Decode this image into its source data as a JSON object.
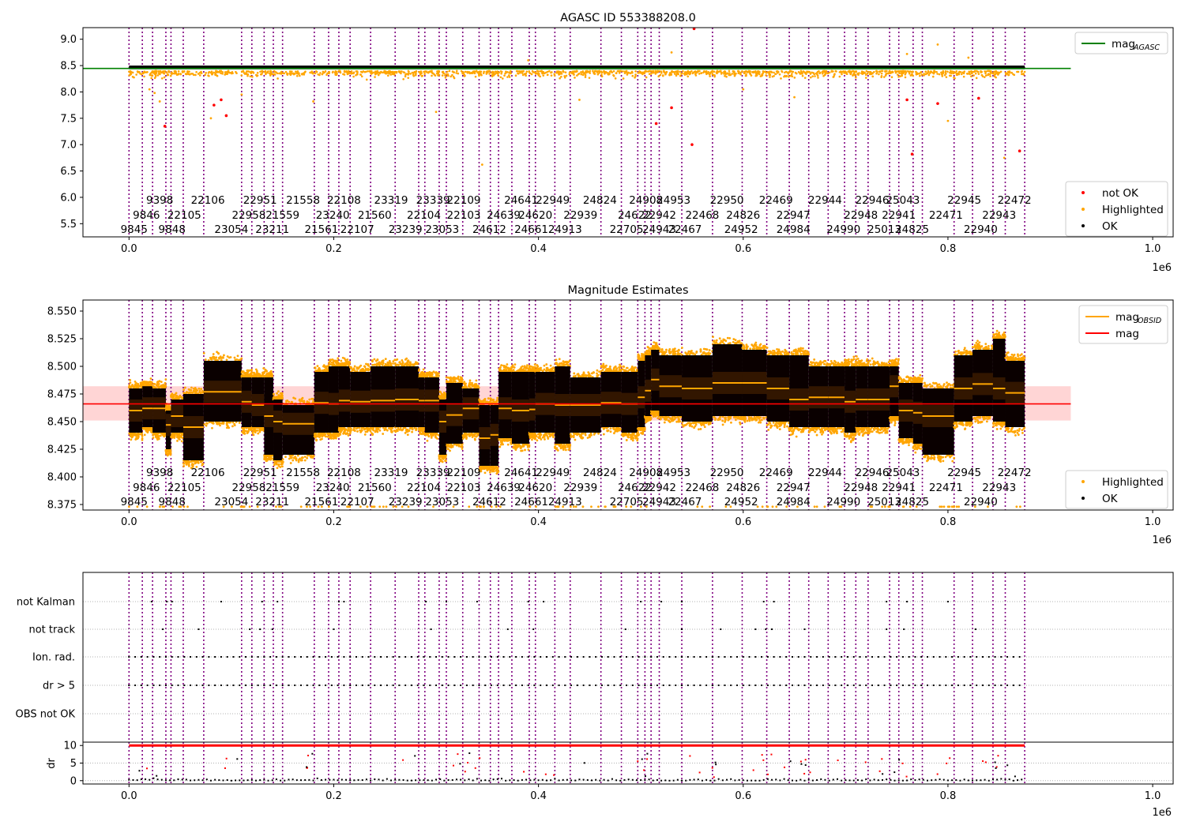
{
  "chart_data": [
    {
      "type": "scatter",
      "title": "AGASC ID 553388208.0",
      "x_multiplier": "1e6",
      "xlim": [
        -0.045,
        1.02
      ],
      "ylim": [
        5.25,
        9.22
      ],
      "xticks": [
        "0.0",
        "0.2",
        "0.4",
        "0.6",
        "0.8",
        "1.0"
      ],
      "xtick_values": [
        0.0,
        0.2,
        0.4,
        0.6,
        0.8,
        1.0
      ],
      "yticks": [
        "5.5",
        "6.0",
        "6.5",
        "7.0",
        "7.5",
        "8.0",
        "8.5",
        "9.0"
      ],
      "ytick_values": [
        5.5,
        6.0,
        6.5,
        7.0,
        7.5,
        8.0,
        8.5,
        9.0
      ],
      "legend_top": [
        {
          "label": "mag",
          "sub": "AGASC",
          "color": "#008000"
        }
      ],
      "legend_bottom": [
        {
          "label": "not OK",
          "color": "#ff0000"
        },
        {
          "label": "Highlighted",
          "color": "#ffa500"
        },
        {
          "label": "OK",
          "color": "#000000"
        }
      ],
      "mag_agasc": 8.445,
      "mag_agasc_xrange": [
        -0.045,
        0.92
      ],
      "ok_band": [
        8.43,
        8.5
      ],
      "not_ok_points": [
        [
          0.035,
          7.35
        ],
        [
          0.083,
          7.75
        ],
        [
          0.09,
          7.85
        ],
        [
          0.095,
          7.55
        ],
        [
          0.515,
          7.4
        ],
        [
          0.53,
          7.7
        ],
        [
          0.55,
          7.0
        ],
        [
          0.552,
          9.2
        ],
        [
          0.76,
          7.85
        ],
        [
          0.765,
          6.82
        ],
        [
          0.79,
          7.78
        ],
        [
          0.83,
          7.88
        ],
        [
          0.87,
          6.88
        ]
      ],
      "highlighted_outliers": [
        [
          0.02,
          8.05
        ],
        [
          0.025,
          7.98
        ],
        [
          0.03,
          7.82
        ],
        [
          0.08,
          7.5
        ],
        [
          0.11,
          7.95
        ],
        [
          0.18,
          7.82
        ],
        [
          0.3,
          7.62
        ],
        [
          0.345,
          6.62
        ],
        [
          0.39,
          8.6
        ],
        [
          0.44,
          7.85
        ],
        [
          0.53,
          8.75
        ],
        [
          0.6,
          8.05
        ],
        [
          0.65,
          7.9
        ],
        [
          0.76,
          8.72
        ],
        [
          0.8,
          7.45
        ],
        [
          0.82,
          8.65
        ],
        [
          0.855,
          6.75
        ],
        [
          0.79,
          8.9
        ]
      ]
    },
    {
      "type": "scatter",
      "title": "Magnitude Estimates",
      "x_multiplier": "1e6",
      "xlim": [
        -0.045,
        1.02
      ],
      "ylim": [
        8.37,
        8.56
      ],
      "xticks": [
        "0.0",
        "0.2",
        "0.4",
        "0.6",
        "0.8",
        "1.0"
      ],
      "xtick_values": [
        0.0,
        0.2,
        0.4,
        0.6,
        0.8,
        1.0
      ],
      "yticks": [
        "8.375",
        "8.400",
        "8.425",
        "8.450",
        "8.475",
        "8.500",
        "8.525",
        "8.550"
      ],
      "ytick_values": [
        8.375,
        8.4,
        8.425,
        8.45,
        8.475,
        8.5,
        8.525,
        8.55
      ],
      "legend_top": [
        {
          "label": "mag",
          "sub": "OBSID",
          "color": "#ffa500"
        },
        {
          "label": "mag",
          "sub": "",
          "color": "#ff0000"
        }
      ],
      "legend_bottom": [
        {
          "label": "Highlighted",
          "color": "#ffa500"
        },
        {
          "label": "OK",
          "color": "#000000"
        }
      ],
      "mag": 8.466,
      "mag_band": [
        8.451,
        8.482
      ],
      "mag_xrange": [
        -0.045,
        0.92
      ],
      "obsid_mags": [
        8.46,
        8.462,
        8.462,
        8.447,
        8.455,
        8.445,
        8.477,
        8.468,
        8.465,
        8.455,
        8.45,
        8.448,
        8.467,
        8.466,
        8.469,
        8.468,
        8.469,
        8.47,
        8.469,
        8.469,
        8.45,
        8.456,
        8.462,
        8.435,
        8.438,
        8.462,
        8.46,
        8.461,
        8.466,
        8.465,
        8.465,
        8.467,
        8.466,
        8.472,
        8.478,
        8.488,
        8.482,
        8.48,
        8.485,
        8.485,
        8.48,
        8.47,
        8.472,
        8.472,
        8.468,
        8.47,
        8.47,
        8.482,
        8.46,
        8.458,
        8.455,
        8.48,
        8.484,
        8.48,
        8.476,
        8.476,
        8.474
      ],
      "obsid_spread_hi": [
        8.48,
        8.482,
        8.48,
        8.46,
        8.47,
        8.475,
        8.505,
        8.49,
        8.49,
        8.49,
        8.47,
        8.465,
        8.495,
        8.5,
        8.5,
        8.495,
        8.5,
        8.5,
        8.49,
        8.49,
        8.47,
        8.485,
        8.48,
        8.465,
        8.465,
        8.495,
        8.495,
        8.495,
        8.495,
        8.5,
        8.49,
        8.495,
        8.495,
        8.505,
        8.51,
        8.515,
        8.51,
        8.51,
        8.52,
        8.515,
        8.51,
        8.51,
        8.5,
        8.5,
        8.5,
        8.5,
        8.5,
        8.5,
        8.485,
        8.485,
        8.48,
        8.51,
        8.515,
        8.525,
        8.505,
        8.505,
        8.5
      ],
      "obsid_spread_lo": [
        8.44,
        8.445,
        8.44,
        8.425,
        8.44,
        8.415,
        8.45,
        8.445,
        8.445,
        8.42,
        8.415,
        8.42,
        8.44,
        8.44,
        8.445,
        8.445,
        8.445,
        8.445,
        8.445,
        8.44,
        8.42,
        8.43,
        8.44,
        8.41,
        8.41,
        8.435,
        8.43,
        8.44,
        8.44,
        8.43,
        8.44,
        8.445,
        8.44,
        8.445,
        8.455,
        8.46,
        8.455,
        8.45,
        8.455,
        8.455,
        8.45,
        8.445,
        8.445,
        8.445,
        8.44,
        8.445,
        8.445,
        8.455,
        8.435,
        8.43,
        8.42,
        8.45,
        8.455,
        8.45,
        8.445,
        8.445,
        8.445
      ]
    },
    {
      "type": "scatter",
      "title": "",
      "x_multiplier": "1e6",
      "xlim": [
        -0.045,
        1.02
      ],
      "xticks": [
        "0.0",
        "0.2",
        "0.4",
        "0.6",
        "0.8",
        "1.0"
      ],
      "xtick_values": [
        0.0,
        0.2,
        0.4,
        0.6,
        0.8,
        1.0
      ],
      "flag_rows": [
        "not Kalman",
        "not track",
        "Ion. rad.",
        "dr > 5",
        "OBS not OK"
      ],
      "dr_label": "dr",
      "dr_yticks": [
        "10",
        "5",
        "0"
      ],
      "dr_ytick_values": [
        10,
        5,
        0
      ],
      "dr_ylim": [
        -0.5,
        10.5
      ],
      "not_kalman_x": [
        0.022,
        0.037,
        0.042,
        0.09,
        0.13,
        0.145,
        0.205,
        0.21,
        0.29,
        0.31,
        0.34,
        0.39,
        0.405,
        0.5,
        0.52,
        0.54,
        0.62,
        0.63,
        0.74,
        0.76,
        0.8
      ],
      "not_track_x": [
        0.033,
        0.068,
        0.118,
        0.128,
        0.14,
        0.2,
        0.295,
        0.37,
        0.395,
        0.485,
        0.54,
        0.578,
        0.612,
        0.622,
        0.628,
        0.66,
        0.74,
        0.757,
        0.827
      ],
      "ion_rad_gap": [
        0.035,
        0.04
      ]
    }
  ],
  "obsids": {
    "boundaries": [
      0.0,
      0.013,
      0.023,
      0.036,
      0.041,
      0.053,
      0.073,
      0.11,
      0.12,
      0.132,
      0.141,
      0.15,
      0.181,
      0.195,
      0.205,
      0.216,
      0.236,
      0.26,
      0.283,
      0.289,
      0.303,
      0.31,
      0.326,
      0.342,
      0.353,
      0.361,
      0.374,
      0.391,
      0.397,
      0.416,
      0.431,
      0.461,
      0.481,
      0.497,
      0.504,
      0.51,
      0.518,
      0.54,
      0.57,
      0.599,
      0.623,
      0.645,
      0.664,
      0.683,
      0.699,
      0.71,
      0.722,
      0.743,
      0.752,
      0.766,
      0.775,
      0.806,
      0.824,
      0.844,
      0.856,
      0.875
    ],
    "row1": [
      {
        "label": "9398",
        "x": 0.03
      },
      {
        "label": "22106",
        "x": 0.077
      },
      {
        "label": "22951",
        "x": 0.128
      },
      {
        "label": "21558",
        "x": 0.17
      },
      {
        "label": "22108",
        "x": 0.21
      },
      {
        "label": "23319",
        "x": 0.256
      },
      {
        "label": "23339",
        "x": 0.297
      },
      {
        "label": "22109",
        "x": 0.327
      },
      {
        "label": "24641",
        "x": 0.383
      },
      {
        "label": "22949",
        "x": 0.414
      },
      {
        "label": "24824",
        "x": 0.46
      },
      {
        "label": "24908",
        "x": 0.505
      },
      {
        "label": "24953",
        "x": 0.532
      },
      {
        "label": "22950",
        "x": 0.584
      },
      {
        "label": "22469",
        "x": 0.632
      },
      {
        "label": "22944",
        "x": 0.68
      },
      {
        "label": "22946",
        "x": 0.726
      },
      {
        "label": "25043",
        "x": 0.756
      },
      {
        "label": "22945",
        "x": 0.816
      },
      {
        "label": "22472",
        "x": 0.865
      }
    ],
    "row2": [
      {
        "label": "9846",
        "x": 0.017
      },
      {
        "label": "22105",
        "x": 0.054
      },
      {
        "label": "22958",
        "x": 0.117
      },
      {
        "label": "21559",
        "x": 0.15
      },
      {
        "label": "23240",
        "x": 0.199
      },
      {
        "label": "21560",
        "x": 0.24
      },
      {
        "label": "22104",
        "x": 0.288
      },
      {
        "label": "22103",
        "x": 0.327
      },
      {
        "label": "24639",
        "x": 0.366
      },
      {
        "label": "24620",
        "x": 0.397
      },
      {
        "label": "22939",
        "x": 0.441
      },
      {
        "label": "24622",
        "x": 0.494
      },
      {
        "label": "22942",
        "x": 0.518
      },
      {
        "label": "22468",
        "x": 0.56
      },
      {
        "label": "24826",
        "x": 0.6
      },
      {
        "label": "22947",
        "x": 0.649
      },
      {
        "label": "22948",
        "x": 0.715
      },
      {
        "label": "22941",
        "x": 0.752
      },
      {
        "label": "22471",
        "x": 0.798
      },
      {
        "label": "22943",
        "x": 0.85
      }
    ],
    "row3": [
      {
        "label": "9845",
        "x": 0.005
      },
      {
        "label": "9848",
        "x": 0.042
      },
      {
        "label": "23054",
        "x": 0.1
      },
      {
        "label": "23211",
        "x": 0.14
      },
      {
        "label": "21561",
        "x": 0.188
      },
      {
        "label": "22107",
        "x": 0.223
      },
      {
        "label": "23239",
        "x": 0.27
      },
      {
        "label": "23053",
        "x": 0.306
      },
      {
        "label": "24612",
        "x": 0.352
      },
      {
        "label": "24661",
        "x": 0.393
      },
      {
        "label": "24913",
        "x": 0.426
      },
      {
        "label": "22705",
        "x": 0.486
      },
      {
        "label": "24943",
        "x": 0.518
      },
      {
        "label": "22467",
        "x": 0.543
      },
      {
        "label": "24952",
        "x": 0.598
      },
      {
        "label": "24984",
        "x": 0.649
      },
      {
        "label": "24990",
        "x": 0.698
      },
      {
        "label": "25013",
        "x": 0.738
      },
      {
        "label": "24825",
        "x": 0.765
      },
      {
        "label": "22940",
        "x": 0.832
      }
    ]
  }
}
